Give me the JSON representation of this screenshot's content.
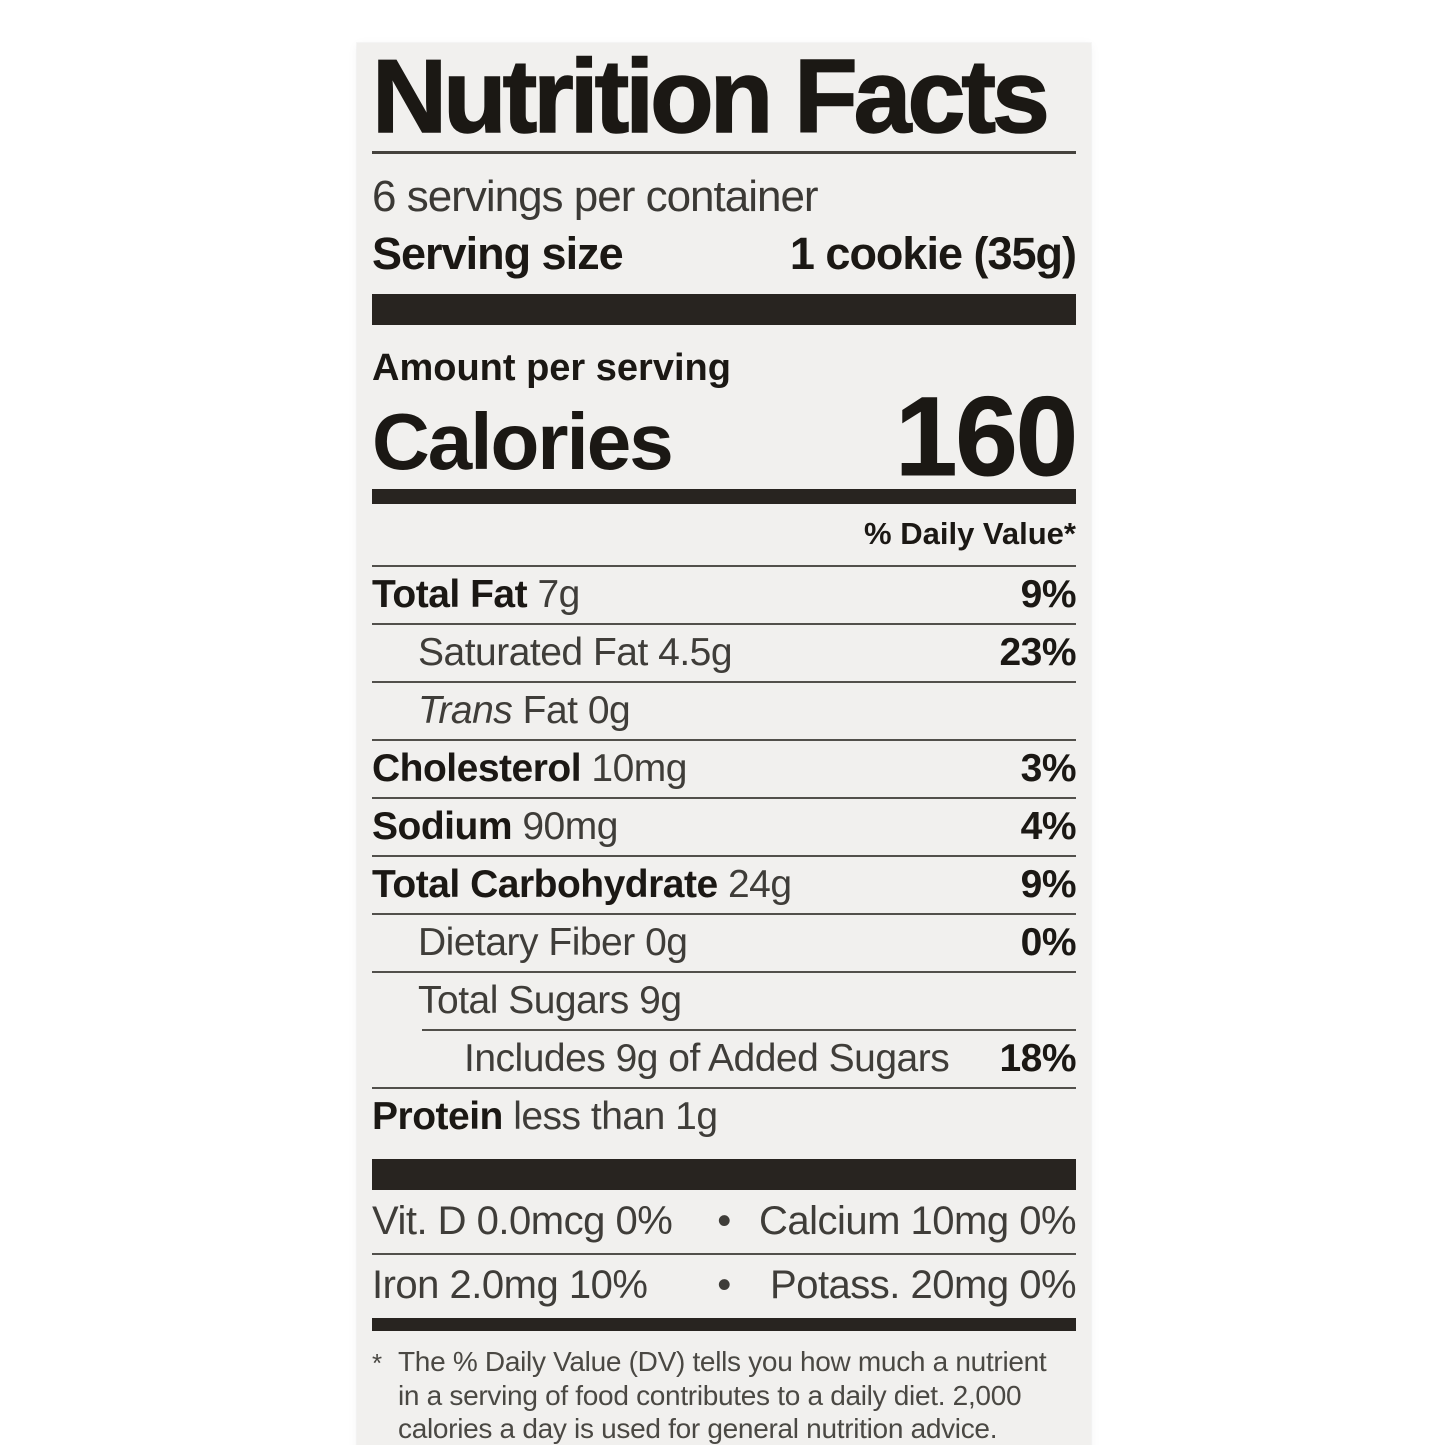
{
  "label": {
    "title": "Nutrition Facts",
    "servings_per_container": "6 servings per container",
    "serving_size": {
      "label": "Serving size",
      "value": "1 cookie (35g)"
    },
    "amount_per_serving": "Amount per serving",
    "calories": {
      "label": "Calories",
      "value": "160"
    },
    "daily_value_header": "% Daily Value*",
    "nutrients": [
      {
        "id": "total-fat",
        "name": "Total Fat",
        "name_style": "bold",
        "amount": "7g",
        "daily_value": "9%",
        "indent": 0
      },
      {
        "id": "saturated-fat",
        "name": "Saturated Fat",
        "name_style": "regular",
        "amount": "4.5g",
        "daily_value": "23%",
        "indent": 1
      },
      {
        "id": "trans-fat",
        "name": "Trans",
        "name_style": "italic",
        "amount": "Fat 0g",
        "daily_value": "",
        "indent": 1
      },
      {
        "id": "cholesterol",
        "name": "Cholesterol",
        "name_style": "bold",
        "amount": "10mg",
        "daily_value": "3%",
        "indent": 0
      },
      {
        "id": "sodium",
        "name": "Sodium",
        "name_style": "bold",
        "amount": "90mg",
        "daily_value": "4%",
        "indent": 0
      },
      {
        "id": "total-carbohydrate",
        "name": "Total Carbohydrate",
        "name_style": "bold",
        "amount": "24g",
        "daily_value": "9%",
        "indent": 0
      },
      {
        "id": "dietary-fiber",
        "name": "Dietary Fiber",
        "name_style": "regular",
        "amount": "0g",
        "daily_value": "0%",
        "indent": 1
      },
      {
        "id": "total-sugars",
        "name": "Total Sugars",
        "name_style": "regular",
        "amount": "9g",
        "daily_value": "",
        "indent": 1
      },
      {
        "id": "added-sugars",
        "name": "Includes 9g of Added Sugars",
        "name_style": "regular",
        "amount": "",
        "daily_value": "18%",
        "indent": 2,
        "indented_separator": true
      },
      {
        "id": "protein",
        "name": "Protein",
        "name_style": "bold",
        "amount": "less than 1g",
        "daily_value": "",
        "indent": 0
      }
    ],
    "micronutrients": {
      "separator": "•",
      "rows": [
        {
          "id": "vitd-calcium",
          "left": "Vit. D 0.0mcg 0%",
          "right": "Calcium 10mg 0%"
        },
        {
          "id": "iron-potassium",
          "left": "Iron 2.0mg 10%",
          "right": "Potass. 20mg 0%"
        }
      ]
    },
    "footnote": {
      "marker": "*",
      "lines": [
        "The % Daily Value (DV) tells you how much a nutrient",
        "in a serving of food contributes to a daily diet. 2,000",
        "calories a day is used for general nutrition advice."
      ]
    }
  },
  "colors": {
    "page_background": "#ffffff",
    "card_background": "#f1f0ee",
    "section_bar": "#282420",
    "text_strong": "#1b1814",
    "text_regular": "#3f3d39",
    "hairline": "#52504b"
  }
}
